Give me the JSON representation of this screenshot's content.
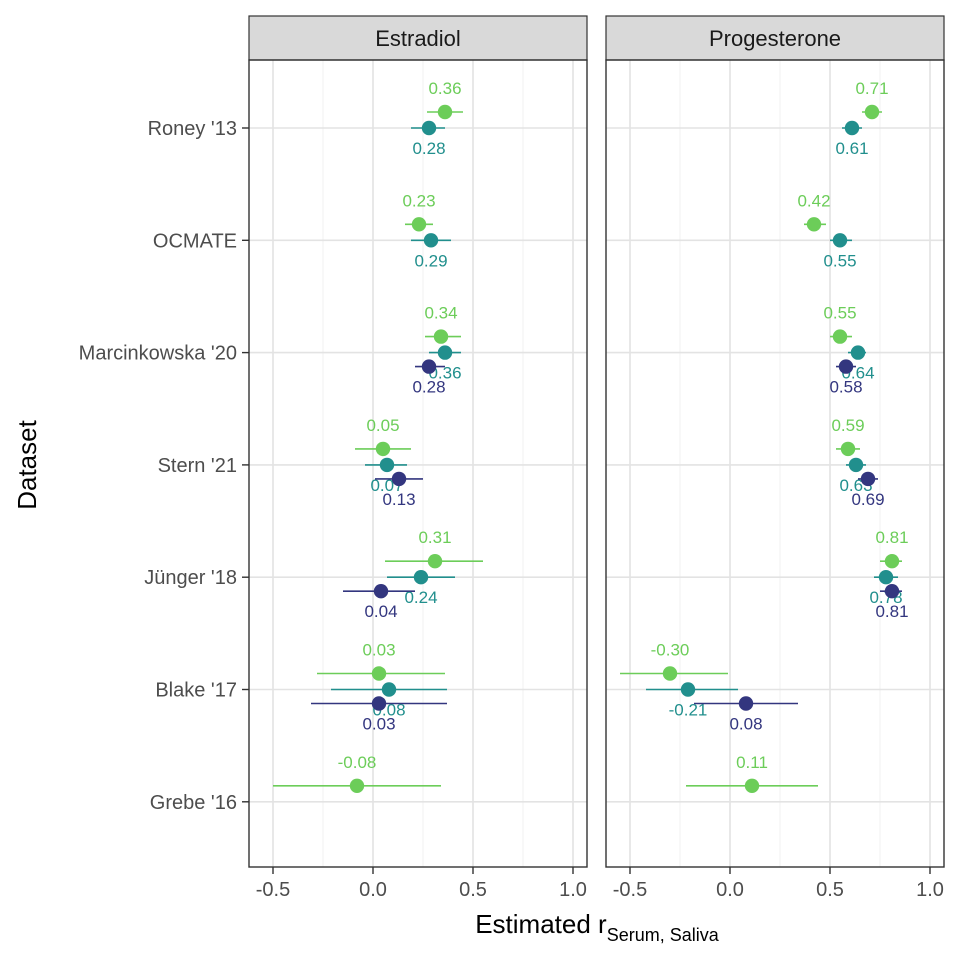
{
  "chart_data": {
    "type": "scatter",
    "xlabel": "Estimated r",
    "xlabel_subscript": "Serum, Saliva",
    "ylabel": "Dataset",
    "xlim": [
      -0.62,
      1.07
    ],
    "x_ticks": [
      -0.5,
      0.0,
      0.5,
      1.0
    ],
    "x_tick_labels": [
      "-0.5",
      "0.0",
      "0.5",
      "1.0"
    ],
    "categories": [
      "Roney '13",
      "OCMATE",
      "Marcinkowska '20",
      "Stern '21",
      "Jünger '18",
      "Blake '17",
      "Grebe '16"
    ],
    "grid": true,
    "series_colors": [
      "#6ccd59",
      "#218f8d",
      "#33367f"
    ],
    "panels": [
      {
        "title": "Estradiol",
        "points": [
          {
            "dataset": "Roney '13",
            "series": 0,
            "x": 0.36,
            "lo": 0.27,
            "hi": 0.45,
            "label": "0.36"
          },
          {
            "dataset": "Roney '13",
            "series": 1,
            "x": 0.28,
            "lo": 0.19,
            "hi": 0.36,
            "label": "0.28"
          },
          {
            "dataset": "OCMATE",
            "series": 0,
            "x": 0.23,
            "lo": 0.16,
            "hi": 0.3,
            "label": "0.23"
          },
          {
            "dataset": "OCMATE",
            "series": 1,
            "x": 0.29,
            "lo": 0.19,
            "hi": 0.39,
            "label": "0.29"
          },
          {
            "dataset": "Marcinkowska '20",
            "series": 0,
            "x": 0.34,
            "lo": 0.26,
            "hi": 0.44,
            "label": "0.34"
          },
          {
            "dataset": "Marcinkowska '20",
            "series": 1,
            "x": 0.36,
            "lo": 0.28,
            "hi": 0.44,
            "label": "0.36"
          },
          {
            "dataset": "Marcinkowska '20",
            "series": 2,
            "x": 0.28,
            "lo": 0.21,
            "hi": 0.36,
            "label": "0.28"
          },
          {
            "dataset": "Stern '21",
            "series": 0,
            "x": 0.05,
            "lo": -0.09,
            "hi": 0.19,
            "label": "0.05"
          },
          {
            "dataset": "Stern '21",
            "series": 1,
            "x": 0.07,
            "lo": -0.04,
            "hi": 0.17,
            "label": "0.07"
          },
          {
            "dataset": "Stern '21",
            "series": 2,
            "x": 0.13,
            "lo": 0.01,
            "hi": 0.25,
            "label": "0.13"
          },
          {
            "dataset": "Jünger '18",
            "series": 0,
            "x": 0.31,
            "lo": 0.06,
            "hi": 0.55,
            "label": "0.31"
          },
          {
            "dataset": "Jünger '18",
            "series": 1,
            "x": 0.24,
            "lo": 0.07,
            "hi": 0.41,
            "label": "0.24"
          },
          {
            "dataset": "Jünger '18",
            "series": 2,
            "x": 0.04,
            "lo": -0.15,
            "hi": 0.21,
            "label": "0.04"
          },
          {
            "dataset": "Blake '17",
            "series": 0,
            "x": 0.03,
            "lo": -0.28,
            "hi": 0.36,
            "label": "0.03"
          },
          {
            "dataset": "Blake '17",
            "series": 1,
            "x": 0.08,
            "lo": -0.21,
            "hi": 0.37,
            "label": "0.08"
          },
          {
            "dataset": "Blake '17",
            "series": 2,
            "x": 0.03,
            "lo": -0.31,
            "hi": 0.37,
            "label": "0.03"
          },
          {
            "dataset": "Grebe '16",
            "series": 0,
            "x": -0.08,
            "lo": -0.5,
            "hi": 0.34,
            "label": "-0.08"
          }
        ]
      },
      {
        "title": "Progesterone",
        "points": [
          {
            "dataset": "Roney '13",
            "series": 0,
            "x": 0.71,
            "lo": 0.66,
            "hi": 0.76,
            "label": "0.71"
          },
          {
            "dataset": "Roney '13",
            "series": 1,
            "x": 0.61,
            "lo": 0.56,
            "hi": 0.66,
            "label": "0.61"
          },
          {
            "dataset": "OCMATE",
            "series": 0,
            "x": 0.42,
            "lo": 0.37,
            "hi": 0.48,
            "label": "0.42"
          },
          {
            "dataset": "OCMATE",
            "series": 1,
            "x": 0.55,
            "lo": 0.5,
            "hi": 0.61,
            "label": "0.55"
          },
          {
            "dataset": "Marcinkowska '20",
            "series": 0,
            "x": 0.55,
            "lo": 0.5,
            "hi": 0.61,
            "label": "0.55"
          },
          {
            "dataset": "Marcinkowska '20",
            "series": 1,
            "x": 0.64,
            "lo": 0.59,
            "hi": 0.68,
            "label": "0.64"
          },
          {
            "dataset": "Marcinkowska '20",
            "series": 2,
            "x": 0.58,
            "lo": 0.53,
            "hi": 0.63,
            "label": "0.58"
          },
          {
            "dataset": "Stern '21",
            "series": 0,
            "x": 0.59,
            "lo": 0.53,
            "hi": 0.65,
            "label": "0.59"
          },
          {
            "dataset": "Stern '21",
            "series": 1,
            "x": 0.63,
            "lo": 0.58,
            "hi": 0.68,
            "label": "0.63"
          },
          {
            "dataset": "Stern '21",
            "series": 2,
            "x": 0.69,
            "lo": 0.64,
            "hi": 0.74,
            "label": "0.69"
          },
          {
            "dataset": "Jünger '18",
            "series": 0,
            "x": 0.81,
            "lo": 0.75,
            "hi": 0.86,
            "label": "0.81"
          },
          {
            "dataset": "Jünger '18",
            "series": 1,
            "x": 0.78,
            "lo": 0.72,
            "hi": 0.84,
            "label": "0.78"
          },
          {
            "dataset": "Jünger '18",
            "series": 2,
            "x": 0.81,
            "lo": 0.75,
            "hi": 0.86,
            "label": "0.81"
          },
          {
            "dataset": "Blake '17",
            "series": 0,
            "x": -0.3,
            "lo": -0.55,
            "hi": -0.01,
            "label": "-0.30"
          },
          {
            "dataset": "Blake '17",
            "series": 1,
            "x": -0.21,
            "lo": -0.42,
            "hi": 0.04,
            "label": "-0.21"
          },
          {
            "dataset": "Blake '17",
            "series": 2,
            "x": 0.08,
            "lo": -0.18,
            "hi": 0.34,
            "label": "0.08"
          },
          {
            "dataset": "Grebe '16",
            "series": 0,
            "x": 0.11,
            "lo": -0.22,
            "hi": 0.44,
            "label": "0.11"
          }
        ]
      }
    ]
  }
}
